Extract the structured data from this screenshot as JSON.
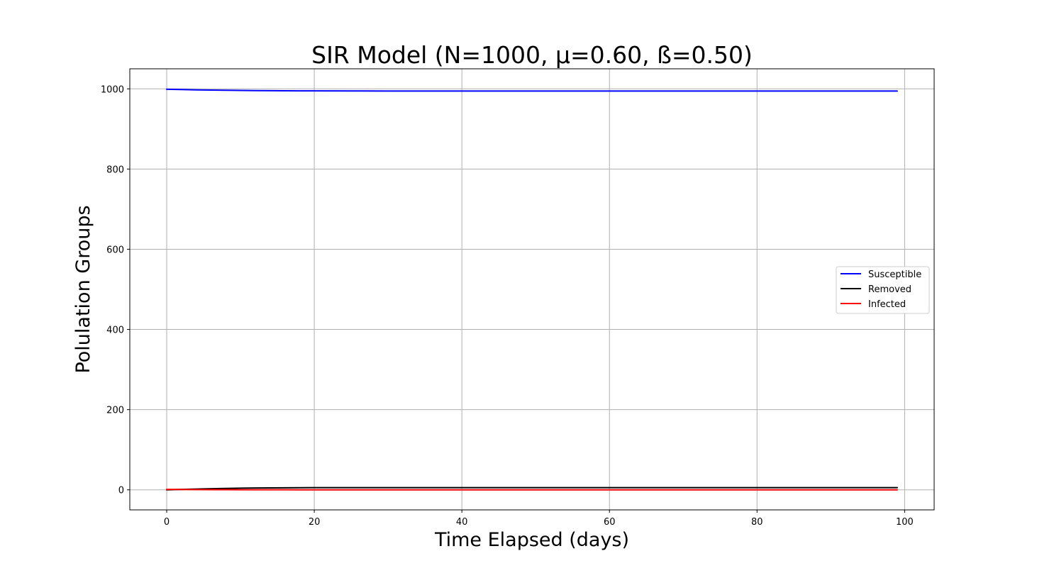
{
  "chart_data": {
    "type": "line",
    "title": "SIR Model (N=1000, μ=0.60, ß=0.50)",
    "xlabel": "Time Elapsed (days)",
    "ylabel": "Polulation Groups",
    "xlim": [
      -5,
      104
    ],
    "ylim": [
      -50,
      1050
    ],
    "xticks": [
      0,
      20,
      40,
      60,
      80,
      100
    ],
    "yticks": [
      0,
      200,
      400,
      600,
      800,
      1000
    ],
    "grid": true,
    "legend_position": "center-right",
    "x": [
      0,
      2,
      4,
      6,
      8,
      10,
      12,
      14,
      16,
      18,
      20,
      25,
      30,
      40,
      50,
      60,
      70,
      80,
      90,
      99
    ],
    "series": [
      {
        "name": "Susceptible",
        "color": "#0000ff",
        "values": [
          999,
          998.2,
          997.5,
          996.9,
          996.4,
          996.0,
          995.7,
          995.4,
          995.2,
          995.0,
          994.9,
          994.7,
          994.6,
          994.5,
          994.5,
          994.5,
          994.5,
          994.5,
          994.5,
          994.5
        ]
      },
      {
        "name": "Removed",
        "color": "#000000",
        "values": [
          0,
          1.0,
          2.0,
          2.9,
          3.6,
          4.2,
          4.6,
          4.9,
          5.1,
          5.3,
          5.4,
          5.5,
          5.5,
          5.5,
          5.5,
          5.5,
          5.5,
          5.5,
          5.5,
          5.5
        ]
      },
      {
        "name": "Infected",
        "color": "#ff0000",
        "values": [
          1,
          0.8,
          0.6,
          0.4,
          0.3,
          0.2,
          0.15,
          0.1,
          0.08,
          0.05,
          0.03,
          0.02,
          0.01,
          0,
          0,
          0,
          0,
          0,
          0,
          0
        ]
      }
    ]
  }
}
